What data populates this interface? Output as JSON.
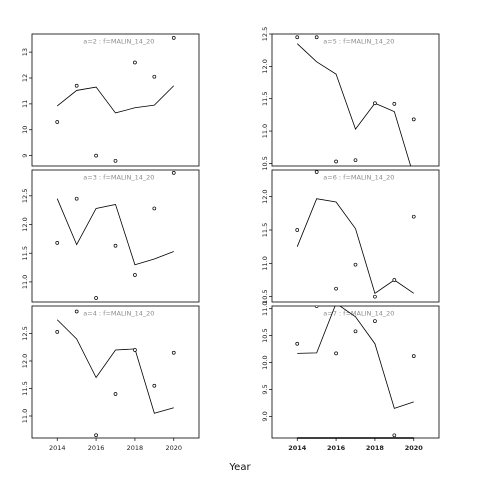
{
  "figure": {
    "xlabel": "Year"
  },
  "chart_data": [
    {
      "type": "line",
      "title": "a=2 : f=MALIN_14_20",
      "x": [
        2014,
        2015,
        2016,
        2017,
        2018,
        2019,
        2020
      ],
      "xlim": [
        2012.7,
        2021.3
      ],
      "ylim": [
        8.6,
        13.7
      ],
      "yticks": [
        9,
        10,
        11,
        12,
        13
      ],
      "series": [
        {
          "values": [
            10.92,
            11.52,
            11.65,
            10.65,
            10.85,
            10.95,
            11.7
          ]
        }
      ],
      "points": [
        [
          2014,
          10.3
        ],
        [
          2015,
          11.7
        ],
        [
          2016,
          9.0
        ],
        [
          2017,
          8.8
        ],
        [
          2018,
          12.6
        ],
        [
          2019,
          12.05
        ],
        [
          2020,
          13.55
        ]
      ]
    },
    {
      "type": "line",
      "title": "a=5 : f=MALIN_14_20",
      "x": [
        2014,
        2015,
        2016,
        2017,
        2018,
        2019,
        2020
      ],
      "xlim": [
        2012.7,
        2021.3
      ],
      "ylim": [
        10.46,
        12.5
      ],
      "yticks": [
        10.5,
        11.0,
        11.5,
        12.0,
        12.5
      ],
      "series": [
        {
          "values": [
            12.35,
            12.07,
            11.88,
            11.03,
            11.43,
            11.3,
            10.3
          ]
        }
      ],
      "points": [
        [
          2014,
          12.45
        ],
        [
          2015,
          12.45
        ],
        [
          2016,
          10.53
        ],
        [
          2017,
          10.55
        ],
        [
          2018,
          11.43
        ],
        [
          2019,
          11.42
        ],
        [
          2020,
          11.18
        ]
      ]
    },
    {
      "type": "line",
      "title": "a=3 : f=MALIN_14_20",
      "x": [
        2014,
        2015,
        2016,
        2017,
        2018,
        2019,
        2020
      ],
      "xlim": [
        2012.7,
        2021.3
      ],
      "ylim": [
        10.65,
        12.95
      ],
      "yticks": [
        11.0,
        11.5,
        12.0,
        12.5
      ],
      "series": [
        {
          "values": [
            12.45,
            11.65,
            12.28,
            12.35,
            11.3,
            11.4,
            11.53
          ]
        }
      ],
      "points": [
        [
          2014,
          11.68
        ],
        [
          2015,
          12.45
        ],
        [
          2016,
          10.72
        ],
        [
          2017,
          11.63
        ],
        [
          2018,
          11.12
        ],
        [
          2019,
          12.28
        ],
        [
          2020,
          12.9
        ]
      ]
    },
    {
      "type": "line",
      "title": "a=6 : f=MALIN_14_20",
      "x": [
        2014,
        2015,
        2016,
        2017,
        2018,
        2019,
        2020
      ],
      "xlim": [
        2012.7,
        2021.3
      ],
      "ylim": [
        10.42,
        12.4
      ],
      "yticks": [
        10.5,
        11.0,
        11.5,
        12.0
      ],
      "series": [
        {
          "values": [
            11.25,
            11.97,
            11.92,
            11.52,
            10.55,
            10.75,
            10.55
          ]
        }
      ],
      "points": [
        [
          2014,
          11.5
        ],
        [
          2015,
          12.37
        ],
        [
          2016,
          10.62
        ],
        [
          2017,
          10.98
        ],
        [
          2018,
          10.5
        ],
        [
          2019,
          10.75
        ],
        [
          2020,
          11.7
        ]
      ]
    },
    {
      "type": "line",
      "title": "a=4 : f=MALIN_14_20",
      "x": [
        2014,
        2015,
        2016,
        2017,
        2018,
        2019,
        2020
      ],
      "xlim": [
        2012.7,
        2021.3
      ],
      "ylim": [
        10.6,
        13.0
      ],
      "yticks": [
        11.0,
        11.5,
        12.0,
        12.5
      ],
      "series": [
        {
          "values": [
            12.75,
            12.4,
            11.7,
            12.2,
            12.22,
            11.05,
            11.15
          ]
        }
      ],
      "points": [
        [
          2014,
          12.53
        ],
        [
          2015,
          12.9
        ],
        [
          2016,
          10.65
        ],
        [
          2017,
          11.4
        ],
        [
          2018,
          12.2
        ],
        [
          2019,
          11.55
        ],
        [
          2020,
          12.15
        ]
      ]
    },
    {
      "type": "line",
      "title": "a=7 : f=MALIN_14_20",
      "x": [
        2014,
        2015,
        2016,
        2017,
        2018,
        2019,
        2020
      ],
      "xlim": [
        2012.7,
        2021.3
      ],
      "ylim": [
        8.6,
        11.05
      ],
      "yticks": [
        9.0,
        9.5,
        10.0,
        10.5,
        11.0
      ],
      "series": [
        {
          "values": [
            10.17,
            10.18,
            11.1,
            10.85,
            10.35,
            9.15,
            9.27
          ]
        }
      ],
      "points": [
        [
          2014,
          10.35
        ],
        [
          2015,
          11.05
        ],
        [
          2016,
          10.17
        ],
        [
          2017,
          10.58
        ],
        [
          2018,
          10.77
        ],
        [
          2019,
          8.65
        ],
        [
          2020,
          10.12
        ]
      ]
    }
  ]
}
